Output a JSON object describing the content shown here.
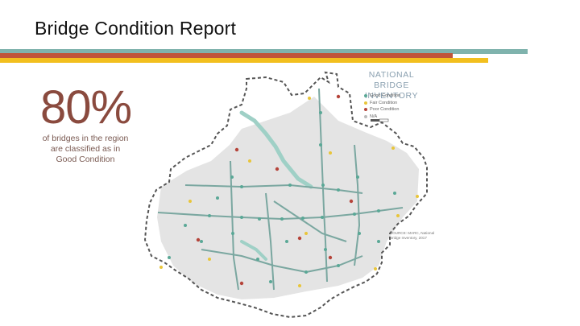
{
  "slide": {
    "title": "Bridge Condition Report"
  },
  "stat": {
    "value": "80%",
    "caption": "of bridges in the region are classified as in Good Condition"
  },
  "map": {
    "title_line1": "NATIONAL BRIDGE",
    "title_line2": "INVENTORY",
    "legend": [
      {
        "label": "Good Condition",
        "color": "#5aa896"
      },
      {
        "label": "Fair Condition",
        "color": "#e8c53a"
      },
      {
        "label": "Poor Condition",
        "color": "#b5443a"
      },
      {
        "label": "N/A",
        "color": "#bbbbbb"
      }
    ],
    "source": "SOURCE: MARC, National Bridge Inventory, 2017"
  },
  "colors": {
    "teal": "#7fb3ad",
    "rust": "#c0553a",
    "gold": "#f2bf1e",
    "dark": "#8a4a3e"
  }
}
